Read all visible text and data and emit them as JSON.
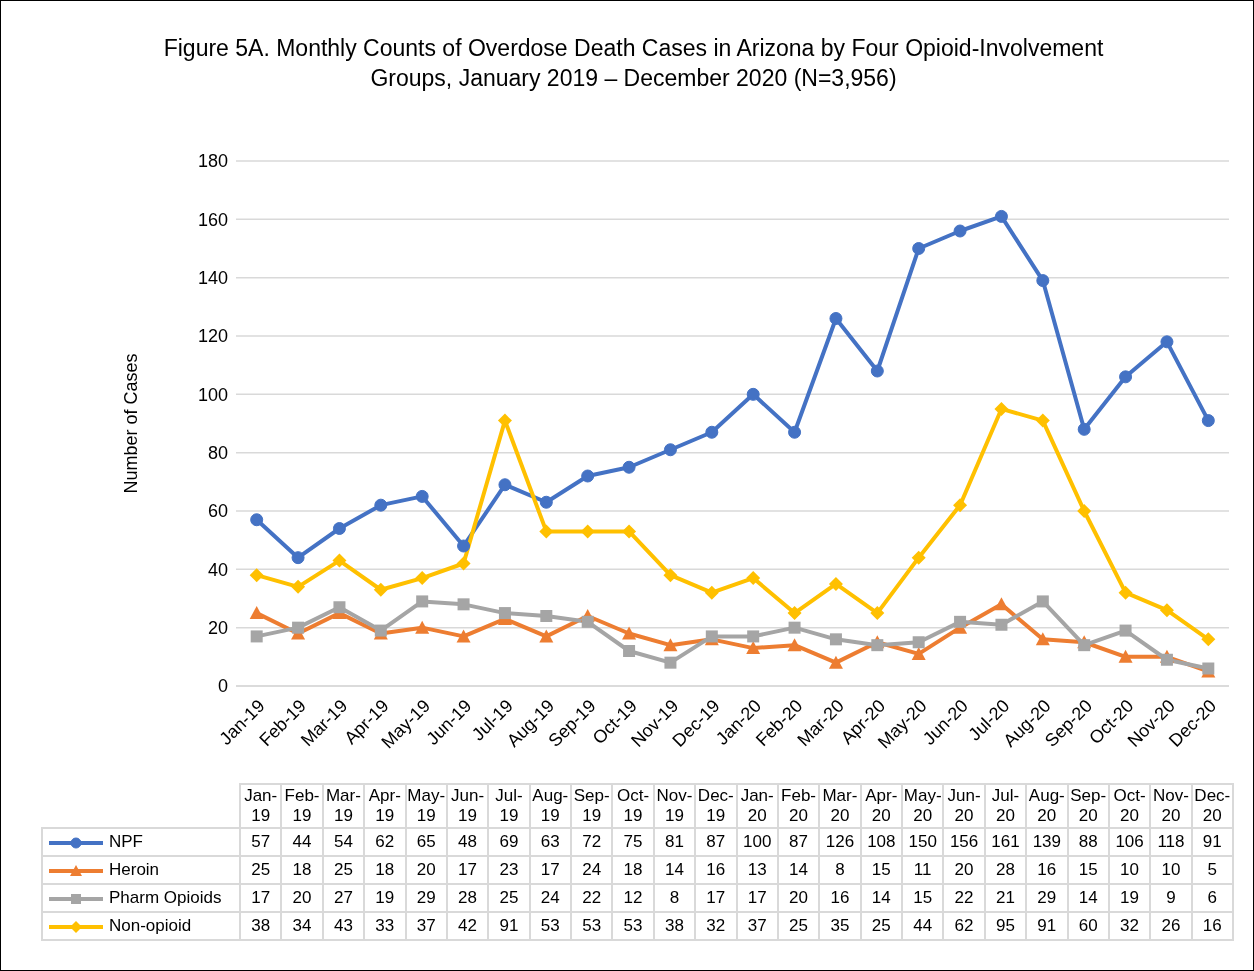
{
  "chart_data": {
    "type": "line",
    "title": "Figure 5A. Monthly Counts of Overdose Death Cases in Arizona by Four Opioid-Involvement Groups, January 2019 – December 2020 (N=3,956)",
    "ylabel": "Number of Cases",
    "categories": [
      "Jan-19",
      "Feb-19",
      "Mar-19",
      "Apr-19",
      "May-19",
      "Jun-19",
      "Jul-19",
      "Aug-19",
      "Sep-19",
      "Oct-19",
      "Nov-19",
      "Dec-19",
      "Jan-20",
      "Feb-20",
      "Mar-20",
      "Apr-20",
      "May-20",
      "Jun-20",
      "Jul-20",
      "Aug-20",
      "Sep-20",
      "Oct-20",
      "Nov-20",
      "Dec-20"
    ],
    "series": [
      {
        "name": "NPF",
        "color": "#4472c4",
        "marker": "circle",
        "values": [
          57,
          44,
          54,
          62,
          65,
          48,
          69,
          63,
          72,
          75,
          81,
          87,
          100,
          87,
          126,
          108,
          150,
          156,
          161,
          139,
          88,
          106,
          118,
          91
        ]
      },
      {
        "name": "Heroin",
        "color": "#ed7d31",
        "marker": "triangle",
        "values": [
          25,
          18,
          25,
          18,
          20,
          17,
          23,
          17,
          24,
          18,
          14,
          16,
          13,
          14,
          8,
          15,
          11,
          20,
          28,
          16,
          15,
          10,
          10,
          5
        ]
      },
      {
        "name": "Pharm Opioids",
        "color": "#a5a5a5",
        "marker": "square",
        "values": [
          17,
          20,
          27,
          19,
          29,
          28,
          25,
          24,
          22,
          12,
          8,
          17,
          17,
          20,
          16,
          14,
          15,
          22,
          21,
          29,
          14,
          19,
          9,
          6
        ]
      },
      {
        "name": "Non-opioid",
        "color": "#ffc000",
        "marker": "diamond",
        "values": [
          38,
          34,
          43,
          33,
          37,
          42,
          91,
          53,
          53,
          53,
          38,
          32,
          37,
          25,
          35,
          25,
          44,
          62,
          95,
          91,
          60,
          32,
          26,
          16
        ]
      }
    ],
    "ylim": [
      0,
      180
    ],
    "yticks": [
      0,
      20,
      40,
      60,
      80,
      100,
      120,
      140,
      160,
      180
    ],
    "grid": "y",
    "legend": "bottom",
    "data_labels": true,
    "line_style": "solid"
  }
}
